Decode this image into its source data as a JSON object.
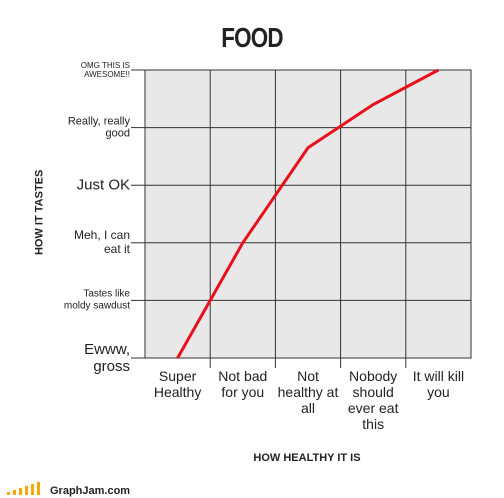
{
  "chart_data": {
    "type": "line",
    "title": "FOOD",
    "x_label": "HOW HEALTHY IT IS",
    "y_label": "HOW IT TASTES",
    "categories": [
      "Super Healthy",
      "Not bad for you",
      "Not healthy at all",
      "Nobody should ever eat this",
      "It will kill you"
    ],
    "values": [
      0,
      2,
      3.65,
      4.4,
      5
    ],
    "color": "#e8101a",
    "ylim": [
      0,
      5
    ],
    "yticks": [
      {
        "value": 0,
        "label": "Ewww, gross"
      },
      {
        "value": 1,
        "label": "Tastes like moldy sawdust"
      },
      {
        "value": 2,
        "label": "Meh, I can eat it"
      },
      {
        "value": 3,
        "label": "Just OK"
      },
      {
        "value": 4,
        "label": "Really, really good"
      },
      {
        "value": 5,
        "label": "OMG THIS IS AWESOME!!"
      }
    ],
    "grid": true,
    "source": "GraphJam.com"
  }
}
